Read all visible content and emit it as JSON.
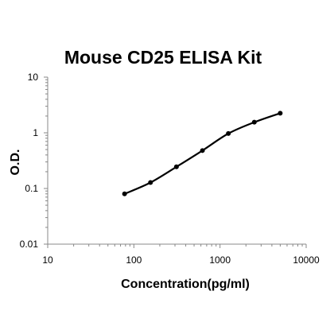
{
  "chart_data": {
    "type": "scatter",
    "title": "Mouse CD25 ELISA Kit",
    "xlabel": "Concentration(pg/ml)",
    "ylabel": "O.D.",
    "xscale": "log",
    "yscale": "log",
    "xlim": [
      10,
      10000
    ],
    "ylim": [
      0.01,
      10
    ],
    "x_ticks": [
      "10",
      "100",
      "1000",
      "10000"
    ],
    "y_ticks": [
      "0.01",
      "0.1",
      "1",
      "10"
    ],
    "grid": false,
    "legend": "none",
    "series": [
      {
        "points": [
          {
            "x": 78,
            "y": 0.08
          },
          {
            "x": 156,
            "y": 0.128
          },
          {
            "x": 312,
            "y": 0.245
          },
          {
            "x": 625,
            "y": 0.48
          },
          {
            "x": 1250,
            "y": 0.97
          },
          {
            "x": 2500,
            "y": 1.55
          },
          {
            "x": 5000,
            "y": 2.25
          }
        ],
        "fit_curve": true
      }
    ],
    "colors": {
      "marker": "#000000",
      "line": "#000000",
      "axis": "#888888"
    }
  }
}
